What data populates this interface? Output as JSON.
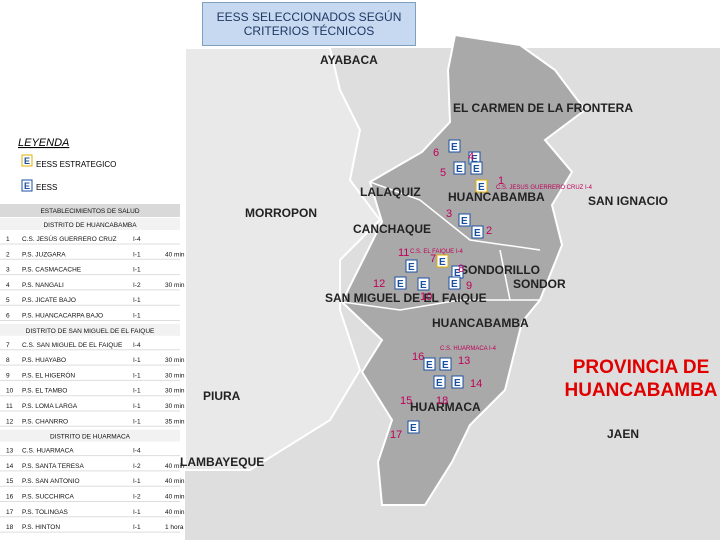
{
  "title": "EESS SELECCIONADOS SEGÚN CRITERIOS TÉCNICOS",
  "legend": {
    "title": "LEYENDA",
    "items": [
      "EESS ESTRATEGICO",
      "EESS"
    ]
  },
  "table": {
    "title": "ESTABLECIMIENTOS DE SALUD",
    "sections": [
      {
        "name": "DISTRITO DE HUANCABAMBA",
        "rows": [
          [
            "1",
            "C.S. JESÚS GUERRERO CRUZ",
            "I-4"
          ],
          [
            "2",
            "P.S. JUZGARA",
            "I-1",
            "40 min"
          ],
          [
            "3",
            "P.S. CASMACACHE",
            "I-1"
          ],
          [
            "4",
            "P.S. NANGALI",
            "I-2",
            "30 min"
          ],
          [
            "5",
            "P.S. JICATE BAJO",
            "I-1"
          ],
          [
            "6",
            "P.S. HUANCACARPA BAJO",
            "I-1"
          ]
        ]
      },
      {
        "name": "DISTRITO DE SAN MIGUEL DE EL FAIQUE",
        "rows": [
          [
            "7",
            "C.S. SAN MIGUEL DE EL FAIQUE",
            "I-4"
          ],
          [
            "8",
            "P.S. HUAYABO",
            "I-1",
            "30 min"
          ],
          [
            "9",
            "P.S. EL HIGERÓN",
            "I-1",
            "30 min"
          ],
          [
            "10",
            "P.S. EL TAMBO",
            "I-1",
            "30 min"
          ],
          [
            "11",
            "P.S. LOMA LARGA",
            "I-1",
            "30 min"
          ],
          [
            "12",
            "P.S. CHANRRO",
            "I-1",
            "35 min"
          ]
        ]
      },
      {
        "name": "DISTRITO DE HUARMACA",
        "rows": [
          [
            "13",
            "C.S. HUARMACA",
            "I-4"
          ],
          [
            "14",
            "P.S. SANTA TERESA",
            "I-2",
            "40 min"
          ],
          [
            "15",
            "P.S. SAN ANTONIO",
            "I-1",
            "40 min"
          ],
          [
            "16",
            "P.S. SUCCHIRCA",
            "I-2",
            "40 min"
          ],
          [
            "17",
            "P.S. TOLINGAS",
            "I-1",
            "40 min"
          ],
          [
            "18",
            "P.S. HINTON",
            "I-1",
            "1 hora"
          ]
        ]
      }
    ]
  },
  "map": {
    "places": [
      "AYABACA",
      "EL CARMEN DE LA FRONTERA",
      "LALAQUIZ",
      "HUANCABAMBA",
      "SAN IGNACIO",
      "MORROPON",
      "CANCHAQUE",
      "SONDORILLO",
      "SONDOR",
      "SAN MIGUEL DE EL FAIQUE",
      "HUANCABAMBA",
      "PIURA",
      "HUARMACA",
      "JAEN",
      "LAMBAYEQUE"
    ],
    "markers": [
      "6",
      "4",
      "5",
      "1",
      "3",
      "2",
      "11",
      "7",
      "8",
      "12",
      "10",
      "9",
      "16",
      "13",
      "14",
      "15",
      "18",
      "17"
    ],
    "facility_labels": [
      "C.S. JESUS GUERRERO CRUZ I-4",
      "C.S. EL FAIQUE I-4",
      "C.S. HUARMACA I-4"
    ],
    "province": "PROVINCIA DE HUANCABAMBA"
  }
}
